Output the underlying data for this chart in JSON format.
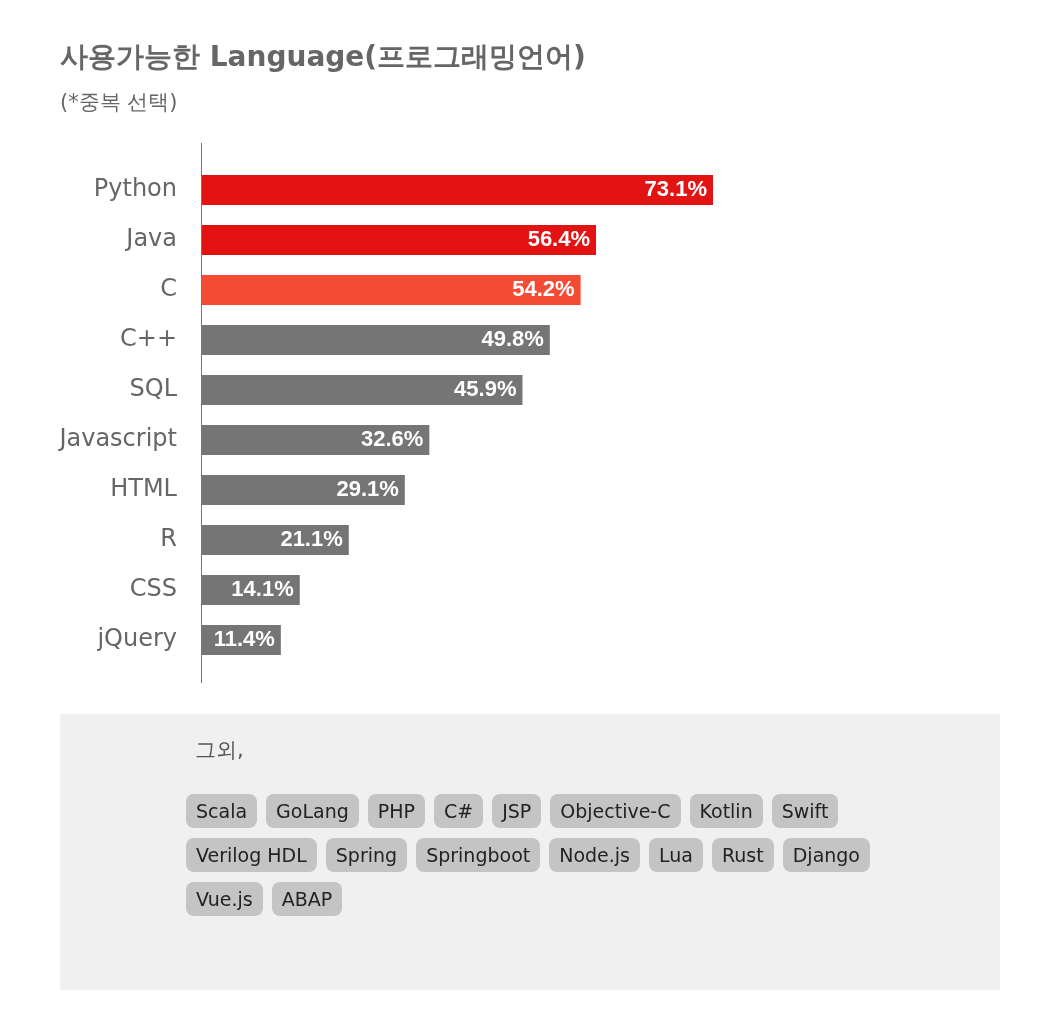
{
  "chart_data": [
    {
      "type": "bar",
      "orientation": "horizontal",
      "title": "사용가능한 Language(프로그래밍언어)",
      "subtitle": "(*중복 선택)",
      "categories": [
        "Python",
        "Java",
        "C",
        "C++",
        "SQL",
        "Javascript",
        "HTML",
        "R",
        "CSS",
        "jQuery"
      ],
      "values": [
        73.1,
        56.4,
        54.2,
        49.8,
        45.9,
        32.6,
        29.1,
        21.1,
        14.1,
        11.4
      ],
      "colors": [
        "#e31313",
        "#e31313",
        "#f44b35",
        "#757575",
        "#757575",
        "#757575",
        "#757575",
        "#757575",
        "#757575",
        "#757575"
      ],
      "value_labels": [
        "73.1%",
        "56.4%",
        "54.2%",
        "49.8%",
        "45.9%",
        "32.6%",
        "29.1%",
        "21.1%",
        "14.1%",
        "11.4%"
      ],
      "tick_labels": "y",
      "legend": false
    },
    {
      "type": "other",
      "title": "그외,",
      "annotations": [
        "Scala",
        "GoLang",
        "PHP",
        "C#",
        "JSP",
        "Objective-C",
        "Kotlin",
        "Swift",
        "Verilog HDL",
        "Spring",
        "Springboot",
        "Node.js",
        "Lua",
        "Rust",
        "Django",
        "Vue.js",
        "ABAP"
      ]
    }
  ]
}
